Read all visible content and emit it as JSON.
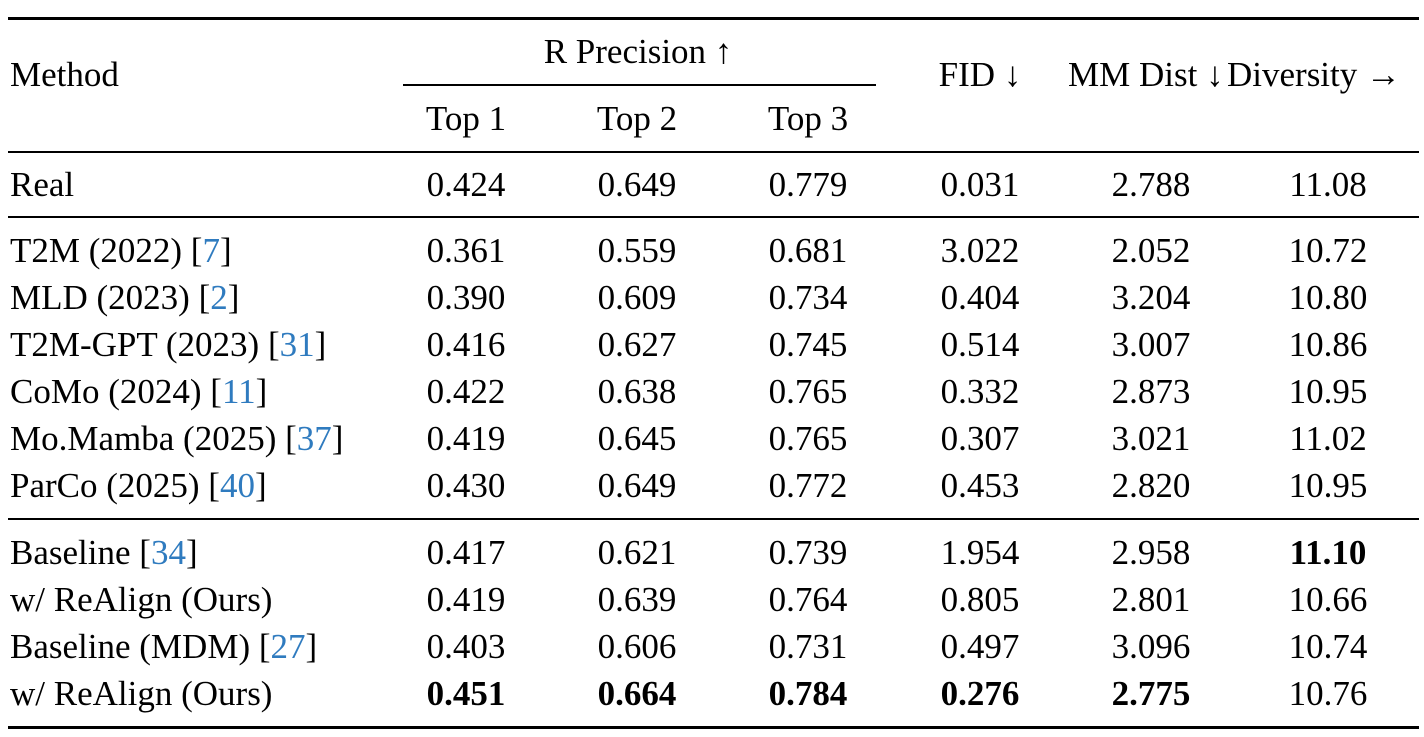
{
  "header": {
    "method": "Method",
    "r_precision": "R Precision ↑",
    "top1": "Top 1",
    "top2": "Top 2",
    "top3": "Top 3",
    "fid": "FID ↓",
    "mm_dist": "MM Dist ↓",
    "diversity": "Diversity →"
  },
  "rows": [
    {
      "method": "Real",
      "cite": "",
      "top1": "0.424",
      "top2": "0.649",
      "top3": "0.779",
      "fid": "0.031",
      "mm": "2.788",
      "div": "11.08"
    },
    {
      "method": "T2M (2022) [",
      "cite": "7",
      "top1": "0.361",
      "top2": "0.559",
      "top3": "0.681",
      "fid": "3.022",
      "mm": "2.052",
      "div": "10.72"
    },
    {
      "method": "MLD (2023) [",
      "cite": "2",
      "top1": "0.390",
      "top2": "0.609",
      "top3": "0.734",
      "fid": "0.404",
      "mm": "3.204",
      "div": "10.80"
    },
    {
      "method": "T2M-GPT (2023) [",
      "cite": "31",
      "top1": "0.416",
      "top2": "0.627",
      "top3": "0.745",
      "fid": "0.514",
      "mm": "3.007",
      "div": "10.86"
    },
    {
      "method": "CoMo (2024) [",
      "cite": "11",
      "top1": "0.422",
      "top2": "0.638",
      "top3": "0.765",
      "fid": "0.332",
      "mm": "2.873",
      "div": "10.95"
    },
    {
      "method": "Mo.Mamba (2025) [",
      "cite": "37",
      "top1": "0.419",
      "top2": "0.645",
      "top3": "0.765",
      "fid": "0.307",
      "mm": "3.021",
      "div": "11.02"
    },
    {
      "method": "ParCo (2025) [",
      "cite": "40",
      "top1": "0.430",
      "top2": "0.649",
      "top3": "0.772",
      "fid": "0.453",
      "mm": "2.820",
      "div": "10.95"
    },
    {
      "method": "Baseline [",
      "cite": "34",
      "top1": "0.417",
      "top2": "0.621",
      "top3": "0.739",
      "fid": "1.954",
      "mm": "2.958",
      "div": "11.10"
    },
    {
      "method": "w/ ReAlign (Ours)",
      "cite": "",
      "top1": "0.419",
      "top2": "0.639",
      "top3": "0.764",
      "fid": "0.805",
      "mm": "2.801",
      "div": "10.66"
    },
    {
      "method": "Baseline (MDM) [",
      "cite": "27",
      "top1": "0.403",
      "top2": "0.606",
      "top3": "0.731",
      "fid": "0.497",
      "mm": "3.096",
      "div": "10.74"
    },
    {
      "method": "w/ ReAlign (Ours)",
      "cite": "",
      "top1": "0.451",
      "top2": "0.664",
      "top3": "0.784",
      "fid": "0.276",
      "mm": "2.775",
      "div": "10.76"
    }
  ],
  "bold_cells": [
    [
      7,
      "div"
    ],
    [
      10,
      "top1"
    ],
    [
      10,
      "top2"
    ],
    [
      10,
      "top3"
    ],
    [
      10,
      "fid"
    ],
    [
      10,
      "mm"
    ]
  ],
  "colors": {
    "citation": "#2f7bbf",
    "text": "#000000"
  }
}
